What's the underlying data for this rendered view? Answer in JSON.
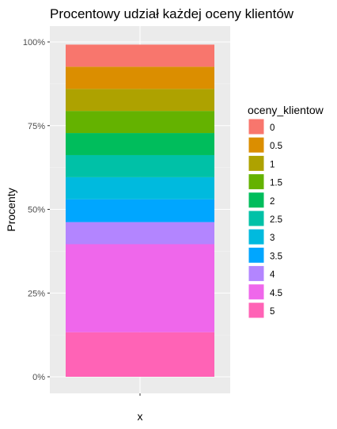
{
  "chart_data": {
    "type": "bar",
    "stacked": "percent",
    "title": "Procentowy udział każdej oceny klientów",
    "xlabel": "x",
    "ylabel": "Procenty",
    "categories": [
      ""
    ],
    "ylim": [
      0,
      1
    ],
    "y_ticks": [
      {
        "value": 0,
        "label": "0%"
      },
      {
        "value": 0.25,
        "label": "25%"
      },
      {
        "value": 0.5,
        "label": "50%"
      },
      {
        "value": 0.75,
        "label": "75%"
      },
      {
        "value": 1,
        "label": "100%"
      }
    ],
    "grid": true,
    "legend": {
      "title": "oceny_klientow",
      "placement": "right"
    },
    "series": [
      {
        "name": "0",
        "values": [
          0.066
        ],
        "color": "#F8766D"
      },
      {
        "name": "0.5",
        "values": [
          0.066
        ],
        "color": "#DB8E00"
      },
      {
        "name": "1",
        "values": [
          0.066
        ],
        "color": "#AEA200"
      },
      {
        "name": "1.5",
        "values": [
          0.066
        ],
        "color": "#64B200"
      },
      {
        "name": "2",
        "values": [
          0.066
        ],
        "color": "#00BD5C"
      },
      {
        "name": "2.5",
        "values": [
          0.066
        ],
        "color": "#00C1A7"
      },
      {
        "name": "3",
        "values": [
          0.066
        ],
        "color": "#00BADE"
      },
      {
        "name": "3.5",
        "values": [
          0.068
        ],
        "color": "#00A6FF"
      },
      {
        "name": "4",
        "values": [
          0.066
        ],
        "color": "#B385FF"
      },
      {
        "name": "4.5",
        "values": [
          0.263
        ],
        "color": "#EF67EB"
      },
      {
        "name": "5",
        "values": [
          0.133
        ],
        "color": "#FF63B6"
      }
    ]
  }
}
